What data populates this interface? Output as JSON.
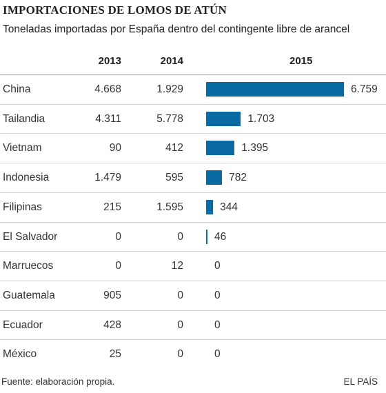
{
  "title": "IMPORTACIONES DE LOMOS DE ATÚN",
  "subtitle": "Toneladas importadas por España dentro del contingente libre de arancel",
  "footer": {
    "source": "Fuente: elaboración propia.",
    "brand": "EL PAÍS"
  },
  "colors": {
    "bar": "#0b6aa2"
  },
  "chart_data": {
    "type": "bar",
    "orientation": "horizontal",
    "title": "IMPORTACIONES DE LOMOS DE ATÚN",
    "subtitle": "Toneladas importadas por España dentro del contingente libre de arancel",
    "columns": [
      "2013",
      "2014",
      "2015"
    ],
    "categories": [
      "China",
      "Tailandia",
      "Vietnam",
      "Indonesia",
      "Filipinas",
      "El Salvador",
      "Marruecos",
      "Guatemala",
      "Ecuador",
      "México"
    ],
    "series": [
      {
        "name": "2013",
        "values": [
          4668,
          4311,
          90,
          1479,
          215,
          0,
          0,
          905,
          428,
          25
        ],
        "labels": [
          "4.668",
          "4.311",
          "90",
          "1.479",
          "215",
          "0",
          "0",
          "905",
          "428",
          "25"
        ]
      },
      {
        "name": "2014",
        "values": [
          1929,
          5778,
          412,
          595,
          1595,
          0,
          12,
          0,
          0,
          0
        ],
        "labels": [
          "1.929",
          "5.778",
          "412",
          "595",
          "1.595",
          "0",
          "12",
          "0",
          "0",
          "0"
        ]
      },
      {
        "name": "2015",
        "values": [
          6759,
          1703,
          1395,
          782,
          344,
          46,
          0,
          0,
          0,
          0
        ],
        "labels": [
          "6.759",
          "1.703",
          "1.395",
          "782",
          "344",
          "46",
          "0",
          "0",
          "0",
          "0"
        ]
      }
    ],
    "bar_series": "2015",
    "grid": false,
    "legend": "none"
  }
}
